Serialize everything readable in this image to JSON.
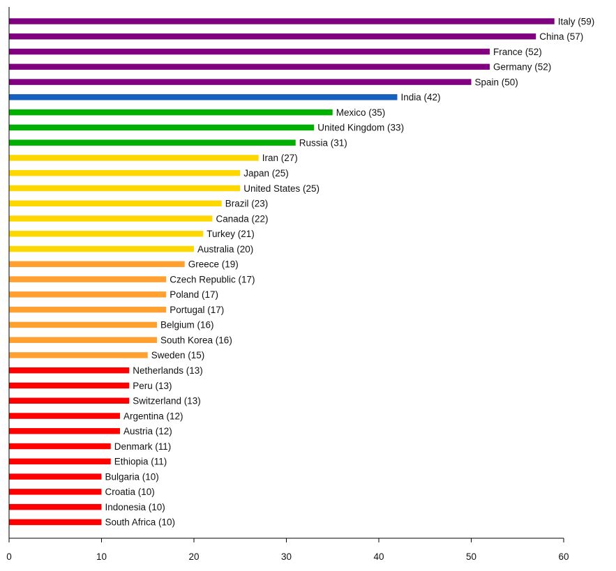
{
  "chart_data": {
    "type": "bar",
    "orientation": "horizontal",
    "title": "",
    "xlabel": "",
    "ylabel": "",
    "xlim": [
      0,
      60
    ],
    "xticks": [
      0,
      10,
      20,
      30,
      40,
      50,
      60
    ],
    "grid": false,
    "legend": "none",
    "colors": {
      "purple": "#800080",
      "blue": "#1560bd",
      "green": "#00b000",
      "yellow": "#ffd700",
      "orange": "#ffa030",
      "red": "#ff0000",
      "axis": "#000000"
    },
    "bars": [
      {
        "label": "Italy (59)",
        "value": 59,
        "color": "purple"
      },
      {
        "label": "China (57)",
        "value": 57,
        "color": "purple"
      },
      {
        "label": "France (52)",
        "value": 52,
        "color": "purple"
      },
      {
        "label": "Germany (52)",
        "value": 52,
        "color": "purple"
      },
      {
        "label": "Spain (50)",
        "value": 50,
        "color": "purple"
      },
      {
        "label": "India (42)",
        "value": 42,
        "color": "blue"
      },
      {
        "label": "Mexico (35)",
        "value": 35,
        "color": "green"
      },
      {
        "label": "United Kingdom (33)",
        "value": 33,
        "color": "green"
      },
      {
        "label": "Russia (31)",
        "value": 31,
        "color": "green"
      },
      {
        "label": "Iran (27)",
        "value": 27,
        "color": "yellow"
      },
      {
        "label": "Japan (25)",
        "value": 25,
        "color": "yellow"
      },
      {
        "label": "United States (25)",
        "value": 25,
        "color": "yellow"
      },
      {
        "label": "Brazil (23)",
        "value": 23,
        "color": "yellow"
      },
      {
        "label": "Canada (22)",
        "value": 22,
        "color": "yellow"
      },
      {
        "label": "Turkey (21)",
        "value": 21,
        "color": "yellow"
      },
      {
        "label": "Australia (20)",
        "value": 20,
        "color": "yellow"
      },
      {
        "label": "Greece (19)",
        "value": 19,
        "color": "orange"
      },
      {
        "label": "Czech Republic (17)",
        "value": 17,
        "color": "orange"
      },
      {
        "label": "Poland (17)",
        "value": 17,
        "color": "orange"
      },
      {
        "label": "Portugal (17)",
        "value": 17,
        "color": "orange"
      },
      {
        "label": "Belgium (16)",
        "value": 16,
        "color": "orange"
      },
      {
        "label": "South Korea (16)",
        "value": 16,
        "color": "orange"
      },
      {
        "label": "Sweden (15)",
        "value": 15,
        "color": "orange"
      },
      {
        "label": "Netherlands (13)",
        "value": 13,
        "color": "red"
      },
      {
        "label": "Peru (13)",
        "value": 13,
        "color": "red"
      },
      {
        "label": "Switzerland (13)",
        "value": 13,
        "color": "red"
      },
      {
        "label": "Argentina (12)",
        "value": 12,
        "color": "red"
      },
      {
        "label": "Austria (12)",
        "value": 12,
        "color": "red"
      },
      {
        "label": "Denmark (11)",
        "value": 11,
        "color": "red"
      },
      {
        "label": "Ethiopia (11)",
        "value": 11,
        "color": "red"
      },
      {
        "label": "Bulgaria (10)",
        "value": 10,
        "color": "red"
      },
      {
        "label": "Croatia (10)",
        "value": 10,
        "color": "red"
      },
      {
        "label": "Indonesia (10)",
        "value": 10,
        "color": "red"
      },
      {
        "label": "South Africa (10)",
        "value": 10,
        "color": "red"
      }
    ]
  }
}
